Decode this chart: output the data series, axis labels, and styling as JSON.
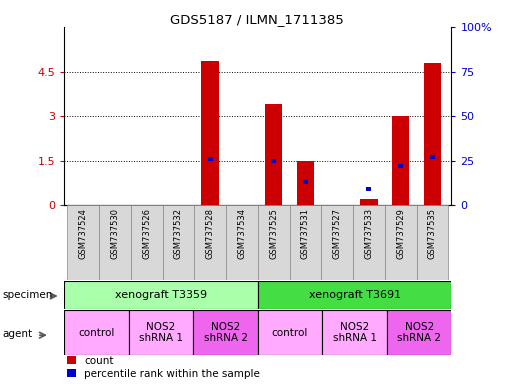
{
  "title": "GDS5187 / ILMN_1711385",
  "samples": [
    "GSM737524",
    "GSM737530",
    "GSM737526",
    "GSM737532",
    "GSM737528",
    "GSM737534",
    "GSM737525",
    "GSM737531",
    "GSM737527",
    "GSM737533",
    "GSM737529",
    "GSM737535"
  ],
  "count_values": [
    0.0,
    0.0,
    0.0,
    0.0,
    4.85,
    0.0,
    3.4,
    1.5,
    0.0,
    0.22,
    3.0,
    4.8
  ],
  "percentile_values": [
    0.0,
    0.0,
    0.0,
    0.0,
    26.0,
    0.0,
    25.0,
    13.0,
    0.0,
    9.0,
    22.0,
    27.0
  ],
  "ylim_left": [
    0,
    6
  ],
  "ylim_right": [
    0,
    100
  ],
  "yticks_left": [
    0,
    1.5,
    3.0,
    4.5
  ],
  "yticklabels_left": [
    "0",
    "1.5",
    "3",
    "4.5"
  ],
  "yticks_right": [
    0,
    25,
    50,
    75,
    100
  ],
  "yticklabels_right": [
    "0",
    "25",
    "50",
    "75",
    "100%"
  ],
  "bar_color": "#cc0000",
  "marker_color": "#0000cc",
  "specimen_groups": [
    {
      "label": "xenograft T3359",
      "start": 0,
      "end": 6,
      "color": "#aaffaa"
    },
    {
      "label": "xenograft T3691",
      "start": 6,
      "end": 12,
      "color": "#44dd44"
    }
  ],
  "agent_groups": [
    {
      "label": "control",
      "start": 0,
      "end": 2,
      "color": "#ffaaff"
    },
    {
      "label": "NOS2\nshRNA 1",
      "start": 2,
      "end": 4,
      "color": "#ffaaff"
    },
    {
      "label": "NOS2\nshRNA 2",
      "start": 4,
      "end": 6,
      "color": "#ee66ee"
    },
    {
      "label": "control",
      "start": 6,
      "end": 8,
      "color": "#ffaaff"
    },
    {
      "label": "NOS2\nshRNA 1",
      "start": 8,
      "end": 10,
      "color": "#ffaaff"
    },
    {
      "label": "NOS2\nshRNA 2",
      "start": 10,
      "end": 12,
      "color": "#ee66ee"
    }
  ],
  "sample_box_color": "#d8d8d8",
  "legend_count_color": "#cc0000",
  "legend_marker_color": "#0000cc",
  "background_color": "#ffffff",
  "plot_bg_color": "#ffffff",
  "tick_label_color_left": "#cc0000",
  "tick_label_color_right": "#0000cc"
}
